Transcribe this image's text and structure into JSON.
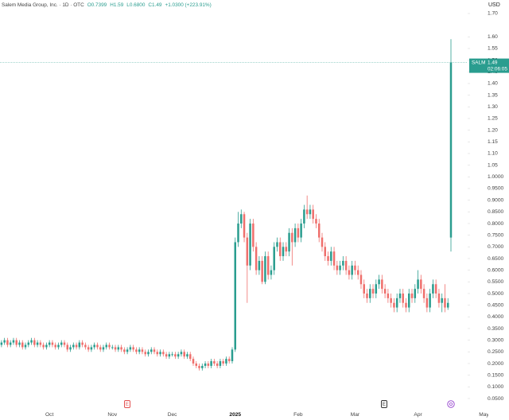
{
  "chart_data": {
    "type": "candlestick",
    "title": "Salem Media Group, Inc. · 1D · OTC",
    "legend_values": [
      "O0.7399",
      "H1.59",
      "L0.6800",
      "C1.49",
      "+1.0300 (+223.91%)"
    ],
    "axis_unit": "USD",
    "symbol": "SALM",
    "countdown": "02:06:05",
    "events": [
      "E",
      "E"
    ],
    "up_color": "#2a9d8f",
    "down_color": "#ef6f6c",
    "grid": false,
    "ylim": [
      0,
      1.75
    ],
    "yticks": [
      {
        "value": 0.05,
        "label": "0.0500"
      },
      {
        "value": 0.1,
        "label": "0.1000"
      },
      {
        "value": 0.15,
        "label": "0.1500"
      },
      {
        "value": 0.2,
        "label": "0.2000"
      },
      {
        "value": 0.25,
        "label": "0.2500"
      },
      {
        "value": 0.3,
        "label": "0.3000"
      },
      {
        "value": 0.35,
        "label": "0.3500"
      },
      {
        "value": 0.4,
        "label": "0.4000"
      },
      {
        "value": 0.45,
        "label": "0.4500"
      },
      {
        "value": 0.5,
        "label": "0.5000"
      },
      {
        "value": 0.55,
        "label": "0.5500"
      },
      {
        "value": 0.6,
        "label": "0.6000"
      },
      {
        "value": 0.65,
        "label": "0.6500"
      },
      {
        "value": 0.7,
        "label": "0.7000"
      },
      {
        "value": 0.75,
        "label": "0.7500"
      },
      {
        "value": 0.8,
        "label": "0.8000"
      },
      {
        "value": 0.85,
        "label": "0.8500"
      },
      {
        "value": 0.9,
        "label": "0.9000"
      },
      {
        "value": 0.95,
        "label": "0.9500"
      },
      {
        "value": 1,
        "label": "1.0000"
      },
      1.05,
      {
        "value": 1.1,
        "label": "1.10"
      },
      1.15,
      {
        "value": 1.2,
        "label": "1.20"
      },
      1.25,
      {
        "value": 1.3,
        "label": "1.30"
      },
      1.35,
      {
        "value": 1.4,
        "label": "1.40"
      },
      1.45,
      {
        "value": 1.5,
        "label": "1.50"
      },
      1.55,
      {
        "value": 1.6,
        "label": "1.60"
      },
      {
        "value": 1.7,
        "label": "1.70"
      }
    ],
    "categories": [
      null,
      null,
      null,
      null,
      null,
      null,
      null,
      null,
      null,
      null,
      null,
      null,
      null,
      null,
      null,
      null,
      "Oct",
      null,
      null,
      null,
      null,
      null,
      null,
      null,
      null,
      null,
      null,
      null,
      null,
      null,
      null,
      null,
      null,
      null,
      null,
      null,
      null,
      "Nov",
      null,
      null,
      null,
      null,
      null,
      null,
      null,
      null,
      null,
      null,
      null,
      null,
      null,
      null,
      null,
      null,
      null,
      null,
      null,
      "Dec",
      null,
      null,
      null,
      null,
      null,
      null,
      null,
      null,
      null,
      null,
      null,
      null,
      null,
      null,
      null,
      null,
      null,
      null,
      null,
      null,
      "2025",
      null,
      null,
      null,
      null,
      null,
      null,
      null,
      null,
      null,
      null,
      null,
      null,
      null,
      null,
      null,
      null,
      null,
      null,
      null,
      null,
      "Feb",
      null,
      null,
      null,
      null,
      null,
      null,
      null,
      null,
      null,
      null,
      null,
      null,
      null,
      null,
      null,
      null,
      null,
      null,
      "Mar",
      null,
      null,
      null,
      null,
      null,
      null,
      null,
      null,
      null,
      null,
      null,
      null,
      null,
      null,
      null,
      null,
      null,
      null,
      null,
      null,
      "Apr",
      null,
      null,
      null,
      null,
      null,
      null,
      null,
      null,
      null,
      null,
      null,
      null,
      null,
      null,
      null,
      null,
      null,
      null,
      null,
      null,
      null,
      "May",
      null,
      null,
      null
    ],
    "open": [
      0.28,
      0.29,
      0.3,
      0.28,
      0.29,
      0.3,
      0.28,
      0.29,
      0.27,
      0.28,
      0.29,
      0.3,
      0.28,
      0.29,
      0.28,
      0.27,
      0.28,
      0.29,
      0.28,
      0.27,
      0.28,
      0.29,
      0.28,
      0.26,
      0.27,
      0.28,
      0.27,
      0.29,
      0.28,
      0.27,
      0.26,
      0.27,
      0.28,
      0.27,
      0.26,
      0.27,
      0.28,
      0.27,
      0.27,
      0.26,
      0.27,
      0.26,
      0.25,
      0.26,
      0.27,
      0.26,
      0.25,
      0.26,
      0.25,
      0.24,
      0.25,
      0.26,
      0.25,
      0.24,
      0.25,
      0.24,
      0.23,
      0.24,
      0.24,
      0.23,
      0.24,
      0.25,
      0.23,
      0.24,
      0.22,
      0.2,
      0.19,
      0.18,
      0.19,
      0.2,
      0.19,
      0.21,
      0.2,
      0.19,
      0.21,
      0.2,
      0.22,
      0.21,
      0.26,
      0.72,
      0.8,
      0.84,
      0.74,
      0.62,
      0.8,
      0.7,
      0.6,
      0.64,
      0.55,
      0.66,
      0.58,
      0.6,
      0.7,
      0.72,
      0.66,
      0.7,
      0.68,
      0.76,
      0.72,
      0.78,
      0.74,
      0.8,
      0.86,
      0.84,
      0.86,
      0.82,
      0.8,
      0.74,
      0.7,
      0.66,
      0.64,
      0.68,
      0.62,
      0.6,
      0.62,
      0.64,
      0.6,
      0.58,
      0.62,
      0.6,
      0.58,
      0.54,
      0.5,
      0.48,
      0.52,
      0.5,
      0.54,
      0.56,
      0.52,
      0.5,
      0.48,
      0.46,
      0.44,
      0.48,
      0.5,
      0.46,
      0.44,
      0.5,
      0.48,
      0.52,
      0.56,
      0.52,
      0.48,
      0.44,
      0.5,
      0.54,
      0.5,
      0.46,
      0.48,
      0.44,
      0.7399,
      null,
      null,
      null,
      null,
      null,
      null,
      null,
      null,
      null,
      null,
      null,
      null,
      null,
      null
    ],
    "high": [
      0.3,
      0.31,
      0.31,
      0.3,
      0.31,
      0.31,
      0.3,
      0.3,
      0.29,
      0.3,
      0.31,
      0.31,
      0.3,
      0.3,
      0.29,
      0.29,
      0.3,
      0.3,
      0.29,
      0.29,
      0.3,
      0.3,
      0.29,
      0.28,
      0.29,
      0.29,
      0.3,
      0.3,
      0.29,
      0.28,
      0.28,
      0.29,
      0.29,
      0.28,
      0.28,
      0.29,
      0.29,
      0.28,
      0.28,
      0.28,
      0.28,
      0.27,
      0.27,
      0.28,
      0.28,
      0.27,
      0.27,
      0.27,
      0.26,
      0.26,
      0.27,
      0.27,
      0.26,
      0.26,
      0.26,
      0.25,
      0.25,
      0.25,
      0.25,
      0.25,
      0.26,
      0.26,
      0.25,
      0.25,
      0.23,
      0.21,
      0.2,
      0.2,
      0.21,
      0.21,
      0.22,
      0.22,
      0.21,
      0.22,
      0.22,
      0.23,
      0.23,
      0.27,
      0.74,
      0.85,
      0.86,
      0.85,
      0.76,
      0.82,
      0.82,
      0.72,
      0.66,
      0.66,
      0.68,
      0.68,
      0.62,
      0.72,
      0.74,
      0.74,
      0.72,
      0.72,
      0.78,
      0.78,
      0.8,
      0.8,
      0.82,
      0.88,
      0.92,
      0.88,
      0.88,
      0.84,
      0.82,
      0.76,
      0.72,
      0.68,
      0.7,
      0.7,
      0.64,
      0.64,
      0.66,
      0.66,
      0.62,
      0.64,
      0.64,
      0.62,
      0.6,
      0.56,
      0.52,
      0.54,
      0.54,
      0.56,
      0.58,
      0.58,
      0.54,
      0.52,
      0.5,
      0.48,
      0.5,
      0.52,
      0.52,
      0.48,
      0.52,
      0.52,
      0.54,
      0.6,
      0.58,
      0.54,
      0.5,
      0.52,
      0.56,
      0.56,
      0.52,
      0.5,
      0.54,
      0.48,
      1.59,
      null,
      null,
      null,
      null,
      null,
      null,
      null,
      null,
      null,
      null,
      null,
      null,
      null,
      null
    ],
    "low": [
      0.27,
      0.28,
      0.27,
      0.27,
      0.28,
      0.27,
      0.27,
      0.26,
      0.26,
      0.27,
      0.28,
      0.27,
      0.27,
      0.27,
      0.26,
      0.26,
      0.27,
      0.27,
      0.26,
      0.26,
      0.27,
      0.27,
      0.25,
      0.25,
      0.26,
      0.26,
      0.26,
      0.27,
      0.26,
      0.25,
      0.25,
      0.26,
      0.26,
      0.25,
      0.25,
      0.26,
      0.26,
      0.26,
      0.25,
      0.25,
      0.25,
      0.24,
      0.24,
      0.25,
      0.25,
      0.24,
      0.24,
      0.24,
      0.23,
      0.23,
      0.24,
      0.24,
      0.23,
      0.23,
      0.23,
      0.22,
      0.22,
      0.23,
      0.22,
      0.22,
      0.23,
      0.22,
      0.22,
      0.21,
      0.19,
      0.18,
      0.17,
      0.17,
      0.18,
      0.18,
      0.18,
      0.19,
      0.18,
      0.18,
      0.19,
      0.19,
      0.2,
      0.2,
      0.25,
      0.7,
      0.78,
      0.72,
      0.46,
      0.6,
      0.68,
      0.58,
      0.58,
      0.54,
      0.54,
      0.56,
      0.56,
      0.58,
      0.68,
      0.64,
      0.64,
      0.66,
      0.66,
      0.62,
      0.7,
      0.72,
      0.72,
      0.78,
      0.82,
      0.82,
      0.8,
      0.78,
      0.72,
      0.68,
      0.64,
      0.62,
      0.62,
      0.6,
      0.58,
      0.58,
      0.6,
      0.58,
      0.56,
      0.56,
      0.58,
      0.56,
      0.52,
      0.48,
      0.46,
      0.46,
      0.48,
      0.48,
      0.52,
      0.5,
      0.48,
      0.46,
      0.44,
      0.42,
      0.42,
      0.46,
      0.44,
      0.42,
      0.42,
      0.46,
      0.46,
      0.5,
      0.5,
      0.46,
      0.42,
      0.42,
      0.48,
      0.48,
      0.44,
      0.42,
      0.42,
      0.43,
      0.68,
      null,
      null,
      null,
      null,
      null,
      null,
      null,
      null,
      null,
      null,
      null,
      null,
      null,
      null
    ],
    "close": [
      0.29,
      0.3,
      0.28,
      0.29,
      0.3,
      0.28,
      0.29,
      0.27,
      0.28,
      0.29,
      0.3,
      0.28,
      0.29,
      0.28,
      0.27,
      0.28,
      0.29,
      0.28,
      0.27,
      0.28,
      0.29,
      0.28,
      0.26,
      0.27,
      0.28,
      0.27,
      0.29,
      0.28,
      0.27,
      0.26,
      0.27,
      0.28,
      0.27,
      0.26,
      0.27,
      0.28,
      0.27,
      0.27,
      0.26,
      0.27,
      0.26,
      0.25,
      0.26,
      0.27,
      0.26,
      0.25,
      0.26,
      0.25,
      0.24,
      0.25,
      0.26,
      0.25,
      0.24,
      0.25,
      0.24,
      0.23,
      0.24,
      0.24,
      0.23,
      0.24,
      0.25,
      0.23,
      0.24,
      0.22,
      0.2,
      0.19,
      0.18,
      0.19,
      0.2,
      0.19,
      0.21,
      0.2,
      0.19,
      0.21,
      0.2,
      0.22,
      0.21,
      0.26,
      0.72,
      0.8,
      0.84,
      0.74,
      0.62,
      0.8,
      0.7,
      0.6,
      0.64,
      0.55,
      0.66,
      0.58,
      0.6,
      0.7,
      0.72,
      0.66,
      0.7,
      0.68,
      0.76,
      0.72,
      0.78,
      0.74,
      0.8,
      0.86,
      0.84,
      0.86,
      0.82,
      0.8,
      0.74,
      0.7,
      0.66,
      0.64,
      0.68,
      0.62,
      0.6,
      0.62,
      0.64,
      0.6,
      0.58,
      0.62,
      0.6,
      0.58,
      0.54,
      0.5,
      0.48,
      0.52,
      0.5,
      0.54,
      0.56,
      0.52,
      0.5,
      0.48,
      0.46,
      0.44,
      0.48,
      0.5,
      0.46,
      0.44,
      0.5,
      0.48,
      0.52,
      0.56,
      0.52,
      0.48,
      0.44,
      0.5,
      0.54,
      0.5,
      0.46,
      0.48,
      0.44,
      0.46,
      1.49,
      null,
      null,
      null,
      null,
      null,
      null,
      null,
      null,
      null,
      null,
      null,
      null,
      null,
      null
    ]
  }
}
